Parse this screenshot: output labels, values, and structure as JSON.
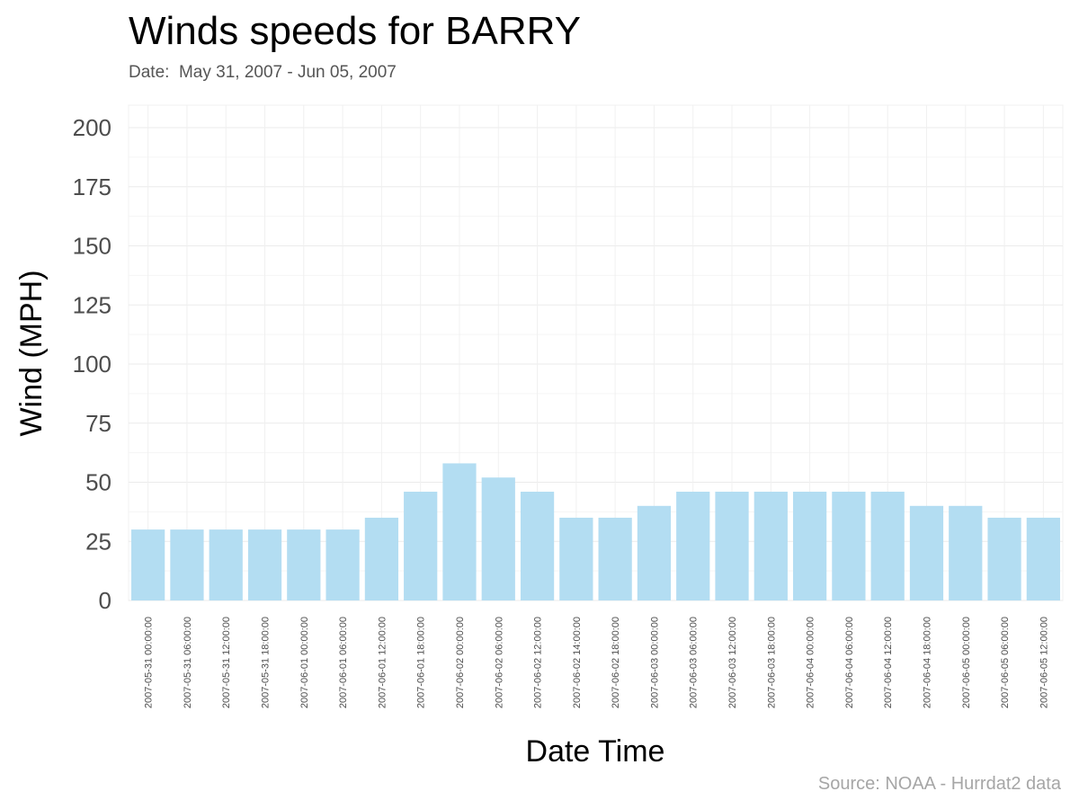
{
  "chart_data": {
    "type": "bar",
    "title": "Winds speeds for BARRY",
    "subtitle": "Date:  May 31, 2007 - Jun 05, 2007",
    "xlabel": "Date Time",
    "ylabel": "Wind (MPH)",
    "caption": "Source: NOAA - Hurrdat2 data",
    "ylim": [
      0,
      200
    ],
    "yticks": [
      0,
      25,
      50,
      75,
      100,
      125,
      150,
      175,
      200
    ],
    "grid": true,
    "bar_color": "#b3ddf2",
    "categories": [
      "2007-05-31 00:00:00",
      "2007-05-31 06:00:00",
      "2007-05-31 12:00:00",
      "2007-05-31 18:00:00",
      "2007-06-01 00:00:00",
      "2007-06-01 06:00:00",
      "2007-06-01 12:00:00",
      "2007-06-01 18:00:00",
      "2007-06-02 00:00:00",
      "2007-06-02 06:00:00",
      "2007-06-02 12:00:00",
      "2007-06-02 14:00:00",
      "2007-06-02 18:00:00",
      "2007-06-03 00:00:00",
      "2007-06-03 06:00:00",
      "2007-06-03 12:00:00",
      "2007-06-03 18:00:00",
      "2007-06-04 00:00:00",
      "2007-06-04 06:00:00",
      "2007-06-04 12:00:00",
      "2007-06-04 18:00:00",
      "2007-06-05 00:00:00",
      "2007-06-05 06:00:00",
      "2007-06-05 12:00:00"
    ],
    "values": [
      30,
      30,
      30,
      30,
      30,
      30,
      35,
      46,
      58,
      52,
      46,
      35,
      35,
      40,
      46,
      46,
      46,
      46,
      46,
      46,
      40,
      40,
      35,
      35
    ]
  }
}
